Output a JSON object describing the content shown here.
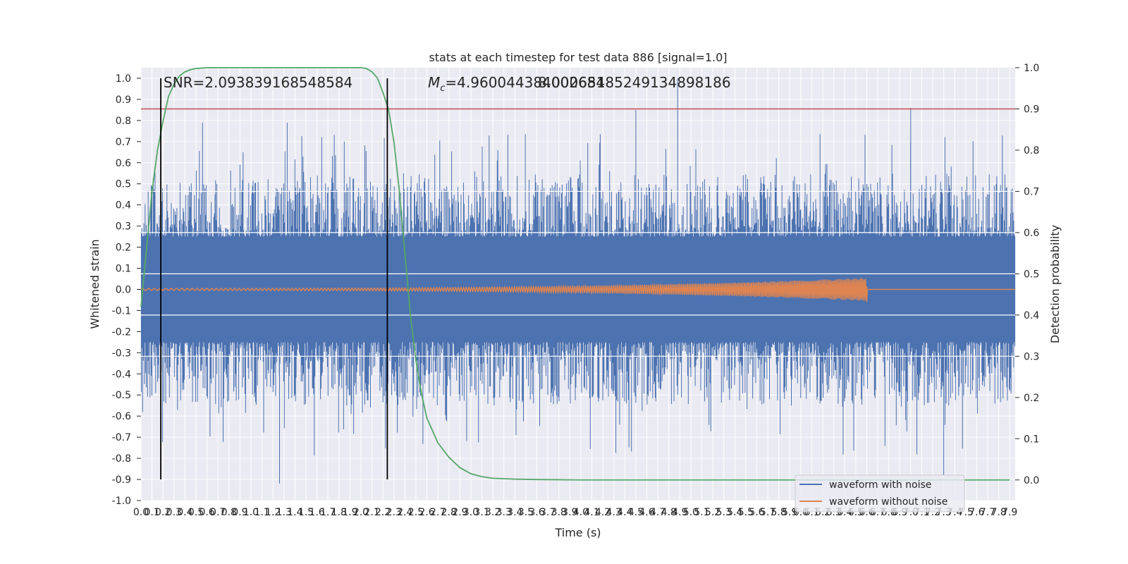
{
  "chart_data": {
    "type": "line",
    "title": "stats at each timestep for test data 886 [signal=1.0]",
    "xlabel": "Time (s)",
    "ylabel": "Whitened strain",
    "ylabel_right": "Detection probability",
    "xlim": [
      0.0,
      7.95
    ],
    "ylim": [
      -1.0,
      1.05
    ],
    "ylim_right": [
      -0.05,
      1.0
    ],
    "x_ticks": [
      "0.0",
      "0.1",
      "0.2",
      "0.3",
      "0.4",
      "0.5",
      "0.6",
      "0.7",
      "0.8",
      "0.9",
      "1.0",
      "1.1",
      "1.2",
      "1.3",
      "1.4",
      "1.5",
      "1.6",
      "1.7",
      "1.8",
      "1.9",
      "2.0",
      "2.1",
      "2.2",
      "2.3",
      "2.4",
      "2.5",
      "2.6",
      "2.7",
      "2.8",
      "2.9",
      "3.0",
      "3.1",
      "3.2",
      "3.3",
      "3.4",
      "3.5",
      "3.6",
      "3.7",
      "3.8",
      "3.9",
      "4.0",
      "4.1",
      "4.2",
      "4.3",
      "4.4",
      "4.5",
      "4.6",
      "4.7",
      "4.8",
      "4.9",
      "5.0",
      "5.1",
      "5.2",
      "5.3",
      "5.4",
      "5.5",
      "5.6",
      "5.7",
      "5.8",
      "5.9",
      "6.0",
      "6.1",
      "6.2",
      "6.3",
      "6.4",
      "6.5",
      "6.6",
      "6.7",
      "6.8",
      "6.9",
      "7.0",
      "7.1",
      "7.2",
      "7.3",
      "7.4",
      "7.5",
      "7.6",
      "7.7",
      "7.8",
      "7.9"
    ],
    "y_ticks": [
      "-1.0",
      "-0.9",
      "-0.8",
      "-0.7",
      "-0.6",
      "-0.5",
      "-0.4",
      "-0.3",
      "-0.2",
      "-0.1",
      "0.0",
      "0.1",
      "0.2",
      "0.3",
      "0.4",
      "0.5",
      "0.6",
      "0.7",
      "0.8",
      "0.9",
      "1.0"
    ],
    "y_ticks_right": [
      "0.0",
      "0.1",
      "0.2",
      "0.3",
      "0.4",
      "0.5",
      "0.6",
      "0.7",
      "0.8",
      "0.9",
      "1.0"
    ],
    "grid": true,
    "legend_position": "bottom-right",
    "annotations": {
      "snr": "SNR=2.093839168548584",
      "mc_overlap": "$M_c$=4.960044384002684",
      "mc_overlap_2": "8.00065185249134898186"
    },
    "threshold_line": {
      "value_right_axis": 0.9,
      "color": "#c44e52"
    },
    "vertical_markers": [
      0.18,
      2.24
    ],
    "series": [
      {
        "name": "waveform with noise",
        "color": "#4c72b0",
        "description_envelope": {
          "core_abs": 0.25,
          "typical_peak_abs": 0.55,
          "max": 1.0,
          "min": -0.92
        }
      },
      {
        "name": "waveform without noise",
        "color": "#dd8452",
        "chirp": {
          "start_x": 0.0,
          "end_x": 6.6,
          "start_amp": 0.005,
          "end_amp": 0.055
        }
      },
      {
        "name": "detection probability",
        "color": "#55a868",
        "axis": "right",
        "x": [
          0.0,
          0.05,
          0.1,
          0.15,
          0.2,
          0.25,
          0.3,
          0.35,
          0.4,
          0.45,
          0.5,
          0.6,
          0.8,
          1.0,
          1.5,
          2.0,
          2.05,
          2.1,
          2.15,
          2.2,
          2.25,
          2.3,
          2.35,
          2.4,
          2.45,
          2.5,
          2.55,
          2.6,
          2.7,
          2.8,
          2.9,
          3.0,
          3.1,
          3.2,
          3.4,
          3.6,
          4.0,
          5.0,
          6.0,
          7.0,
          7.9
        ],
        "y": [
          0.42,
          0.56,
          0.7,
          0.8,
          0.87,
          0.93,
          0.96,
          0.98,
          0.99,
          0.995,
          0.998,
          1.0,
          1.0,
          1.0,
          1.0,
          1.0,
          0.998,
          0.99,
          0.975,
          0.94,
          0.9,
          0.82,
          0.7,
          0.55,
          0.4,
          0.29,
          0.21,
          0.15,
          0.09,
          0.055,
          0.03,
          0.015,
          0.008,
          0.004,
          0.002,
          0.001,
          0.0,
          0.0,
          0.0,
          0.0,
          0.0
        ]
      }
    ]
  }
}
